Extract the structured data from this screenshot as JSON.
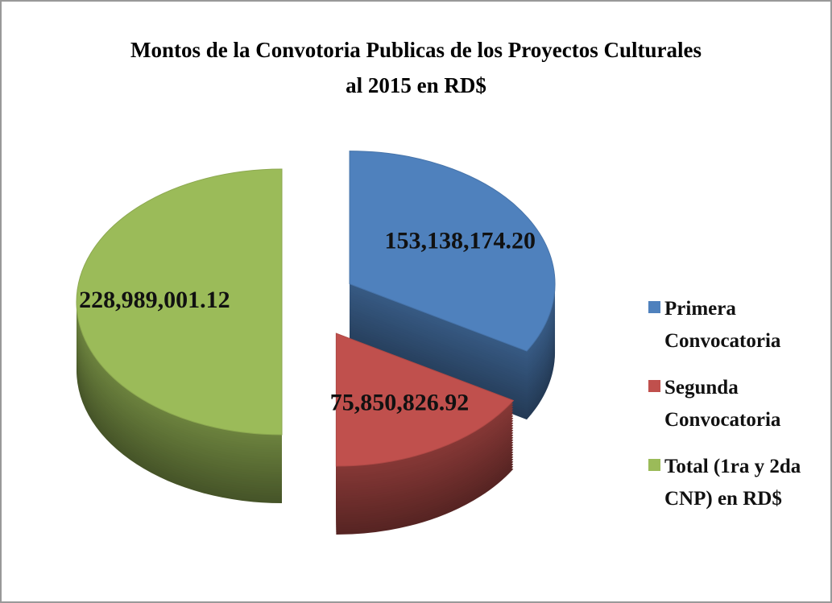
{
  "chart_data": {
    "type": "pie",
    "title": "Montos de la Convotoria Publicas de los Proyectos Culturales al 2015 en RD$",
    "categories": [
      "Primera Convocatoria",
      "Segunda Convocatoria",
      "Total  (1ra y 2da CNP) en RD$"
    ],
    "values": [
      153138174.2,
      75850826.92,
      228989001.12
    ],
    "value_labels": [
      "153,138,174.20",
      "75,850,826.92",
      "228,989,001.12"
    ],
    "colors": [
      "#4f81bd",
      "#c0504d",
      "#9bbb59"
    ],
    "legend": "right"
  }
}
